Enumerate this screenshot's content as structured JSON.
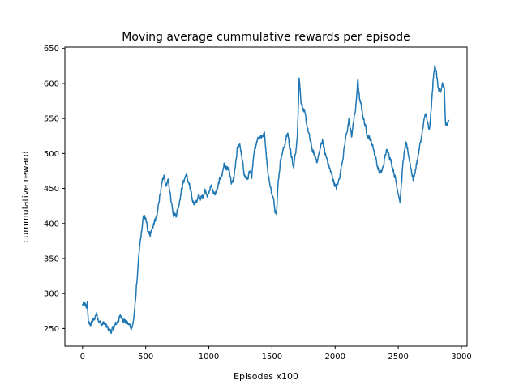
{
  "chart_data": {
    "type": "line",
    "title": "Moving average cummulative rewards per episode",
    "xlabel": "Episodes x100",
    "ylabel": "cummulative reward",
    "xlim": [
      -140,
      3045
    ],
    "ylim": [
      225,
      652
    ],
    "xticks": [
      0,
      500,
      1000,
      1500,
      2000,
      2500,
      3000
    ],
    "yticks": [
      250,
      300,
      350,
      400,
      450,
      500,
      550,
      600,
      650
    ],
    "grid": false,
    "series": [
      {
        "name": "moving average",
        "color": "#1f77b4",
        "anchors": [
          [
            0,
            284
          ],
          [
            20,
            283
          ],
          [
            30,
            281
          ],
          [
            38,
            285
          ],
          [
            45,
            262
          ],
          [
            55,
            255
          ],
          [
            70,
            258
          ],
          [
            90,
            262
          ],
          [
            110,
            272
          ],
          [
            130,
            262
          ],
          [
            150,
            255
          ],
          [
            170,
            258
          ],
          [
            190,
            252
          ],
          [
            210,
            248
          ],
          [
            230,
            246
          ],
          [
            250,
            252
          ],
          [
            270,
            258
          ],
          [
            290,
            265
          ],
          [
            310,
            267
          ],
          [
            330,
            262
          ],
          [
            350,
            258
          ],
          [
            370,
            255
          ],
          [
            385,
            252
          ],
          [
            395,
            253
          ],
          [
            410,
            270
          ],
          [
            425,
            305
          ],
          [
            440,
            340
          ],
          [
            455,
            370
          ],
          [
            470,
            392
          ],
          [
            485,
            412
          ],
          [
            500,
            405
          ],
          [
            515,
            393
          ],
          [
            535,
            385
          ],
          [
            550,
            392
          ],
          [
            565,
            400
          ],
          [
            590,
            410
          ],
          [
            610,
            440
          ],
          [
            630,
            455
          ],
          [
            645,
            468
          ],
          [
            660,
            455
          ],
          [
            680,
            460
          ],
          [
            700,
            435
          ],
          [
            720,
            415
          ],
          [
            740,
            412
          ],
          [
            760,
            425
          ],
          [
            780,
            445
          ],
          [
            800,
            460
          ],
          [
            820,
            470
          ],
          [
            845,
            455
          ],
          [
            870,
            432
          ],
          [
            895,
            430
          ],
          [
            920,
            438
          ],
          [
            945,
            436
          ],
          [
            970,
            448
          ],
          [
            995,
            440
          ],
          [
            1020,
            455
          ],
          [
            1045,
            440
          ],
          [
            1070,
            450
          ],
          [
            1090,
            465
          ],
          [
            1105,
            470
          ],
          [
            1120,
            485
          ],
          [
            1140,
            478
          ],
          [
            1160,
            475
          ],
          [
            1180,
            455
          ],
          [
            1200,
            465
          ],
          [
            1225,
            505
          ],
          [
            1245,
            515
          ],
          [
            1265,
            490
          ],
          [
            1280,
            470
          ],
          [
            1300,
            460
          ],
          [
            1320,
            475
          ],
          [
            1340,
            468
          ],
          [
            1360,
            500
          ],
          [
            1380,
            520
          ],
          [
            1400,
            525
          ],
          [
            1420,
            525
          ],
          [
            1440,
            528
          ],
          [
            1455,
            500
          ],
          [
            1470,
            470
          ],
          [
            1490,
            450
          ],
          [
            1510,
            435
          ],
          [
            1525,
            420
          ],
          [
            1535,
            418
          ],
          [
            1550,
            460
          ],
          [
            1570,
            495
          ],
          [
            1590,
            505
          ],
          [
            1610,
            520
          ],
          [
            1625,
            530
          ],
          [
            1640,
            510
          ],
          [
            1655,
            495
          ],
          [
            1670,
            478
          ],
          [
            1685,
            500
          ],
          [
            1700,
            520
          ],
          [
            1715,
            610
          ],
          [
            1730,
            575
          ],
          [
            1745,
            565
          ],
          [
            1760,
            555
          ],
          [
            1780,
            538
          ],
          [
            1800,
            520
          ],
          [
            1820,
            505
          ],
          [
            1840,
            495
          ],
          [
            1860,
            490
          ],
          [
            1880,
            505
          ],
          [
            1900,
            520
          ],
          [
            1920,
            500
          ],
          [
            1940,
            488
          ],
          [
            1955,
            480
          ],
          [
            1970,
            470
          ],
          [
            1990,
            460
          ],
          [
            2010,
            450
          ],
          [
            2030,
            462
          ],
          [
            2050,
            482
          ],
          [
            2070,
            505
          ],
          [
            2090,
            530
          ],
          [
            2110,
            545
          ],
          [
            2130,
            525
          ],
          [
            2150,
            550
          ],
          [
            2165,
            568
          ],
          [
            2180,
            605
          ],
          [
            2195,
            575
          ],
          [
            2210,
            565
          ],
          [
            2225,
            550
          ],
          [
            2240,
            538
          ],
          [
            2260,
            525
          ],
          [
            2280,
            520
          ],
          [
            2300,
            510
          ],
          [
            2320,
            495
          ],
          [
            2340,
            478
          ],
          [
            2360,
            470
          ],
          [
            2380,
            480
          ],
          [
            2400,
            500
          ],
          [
            2420,
            505
          ],
          [
            2440,
            490
          ],
          [
            2460,
            478
          ],
          [
            2480,
            462
          ],
          [
            2500,
            445
          ],
          [
            2515,
            430
          ],
          [
            2530,
            470
          ],
          [
            2545,
            498
          ],
          [
            2560,
            512
          ],
          [
            2575,
            505
          ],
          [
            2590,
            490
          ],
          [
            2605,
            475
          ],
          [
            2620,
            462
          ],
          [
            2640,
            480
          ],
          [
            2660,
            500
          ],
          [
            2680,
            520
          ],
          [
            2700,
            540
          ],
          [
            2715,
            558
          ],
          [
            2730,
            545
          ],
          [
            2745,
            530
          ],
          [
            2760,
            560
          ],
          [
            2775,
            600
          ],
          [
            2790,
            630
          ],
          [
            2805,
            610
          ],
          [
            2820,
            590
          ],
          [
            2835,
            585
          ],
          [
            2850,
            600
          ],
          [
            2865,
            590
          ],
          [
            2875,
            545
          ],
          [
            2890,
            542
          ],
          [
            2900,
            548
          ]
        ]
      }
    ]
  }
}
